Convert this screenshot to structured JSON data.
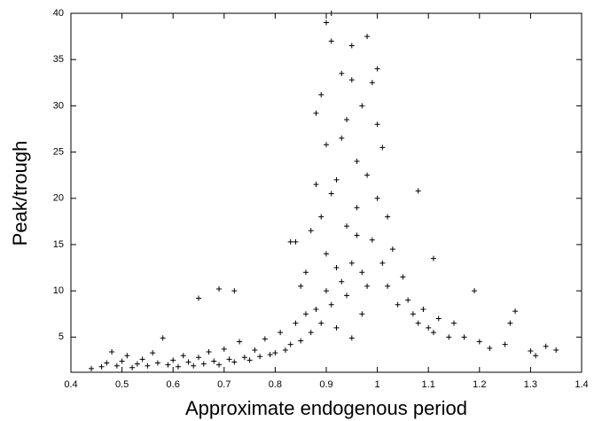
{
  "chart_data": {
    "type": "scatter",
    "x_label": "Approximate endogenous period",
    "y_label": "Peak/trough",
    "xlim": [
      0.4,
      1.4
    ],
    "xticks": [
      0.4,
      0.5,
      0.6,
      0.7,
      0.8,
      0.9,
      1,
      1.1,
      1.2,
      1.3,
      1.4
    ],
    "ylim": [
      1.2,
      40
    ],
    "yticks": [
      5,
      10,
      15,
      20,
      25,
      30,
      35,
      40
    ],
    "color": "#000000",
    "x": [
      0.44,
      0.46,
      0.47,
      0.48,
      0.49,
      0.5,
      0.51,
      0.52,
      0.53,
      0.54,
      0.55,
      0.56,
      0.57,
      0.58,
      0.59,
      0.6,
      0.61,
      0.62,
      0.63,
      0.64,
      0.65,
      0.65,
      0.66,
      0.67,
      0.68,
      0.69,
      0.69,
      0.7,
      0.71,
      0.72,
      0.72,
      0.73,
      0.74,
      0.75,
      0.76,
      0.77,
      0.78,
      0.79,
      0.8,
      0.81,
      0.82,
      0.83,
      0.84,
      0.85,
      0.86,
      0.83,
      0.84,
      0.85,
      0.86,
      0.87,
      0.88,
      0.88,
      0.89,
      0.89,
      0.9,
      0.9,
      0.9,
      0.91,
      0.91,
      0.91,
      0.92,
      0.92,
      0.93,
      0.93,
      0.94,
      0.94,
      0.95,
      0.95,
      0.95,
      0.96,
      0.96,
      0.97,
      0.97,
      0.98,
      0.98,
      0.99,
      0.99,
      1.0,
      1.0,
      1.0,
      1.01,
      1.01,
      1.02,
      1.02,
      1.03,
      1.04,
      1.05,
      1.06,
      1.07,
      1.08,
      1.08,
      1.09,
      1.1,
      1.11,
      1.11,
      1.12,
      1.14,
      1.15,
      1.17,
      1.19,
      1.2,
      1.22,
      1.25,
      1.26,
      1.27,
      1.3,
      1.31,
      1.33,
      1.35,
      0.87,
      0.88,
      0.89,
      0.9,
      0.91,
      0.92,
      0.93,
      0.94,
      0.95,
      0.96,
      0.97,
      0.98
    ],
    "values": [
      1.6,
      1.8,
      2.2,
      3.4,
      1.9,
      2.4,
      3.0,
      1.7,
      2.1,
      2.6,
      1.9,
      3.3,
      2.2,
      4.9,
      2.0,
      2.5,
      1.8,
      3.0,
      2.3,
      1.9,
      2.8,
      9.2,
      2.1,
      3.4,
      2.4,
      10.2,
      2.0,
      3.7,
      2.6,
      10.0,
      2.3,
      4.5,
      2.8,
      2.5,
      3.6,
      2.9,
      4.8,
      3.1,
      3.3,
      5.5,
      3.6,
      4.2,
      6.5,
      4.6,
      7.5,
      15.3,
      15.3,
      10.5,
      12.0,
      16.5,
      29.2,
      21.5,
      31.2,
      18.0,
      25.8,
      14.0,
      39.0,
      40.0,
      37.0,
      20.5,
      22.0,
      12.5,
      33.5,
      26.5,
      28.5,
      17.0,
      36.5,
      32.8,
      4.9,
      24.0,
      19.0,
      30.0,
      12.0,
      37.5,
      22.5,
      32.5,
      15.5,
      34.0,
      28.0,
      20.0,
      25.5,
      13.0,
      18.0,
      10.5,
      14.5,
      8.5,
      11.5,
      9.0,
      7.5,
      20.8,
      6.5,
      8.0,
      6.0,
      13.5,
      5.5,
      7.0,
      5.0,
      6.5,
      5.0,
      10.0,
      4.5,
      3.8,
      4.2,
      6.5,
      7.8,
      3.5,
      3.0,
      4.0,
      3.6,
      5.5,
      8.0,
      6.5,
      10.0,
      8.5,
      6.0,
      11.0,
      9.5,
      13.0,
      16.0,
      7.5,
      10.5
    ]
  }
}
